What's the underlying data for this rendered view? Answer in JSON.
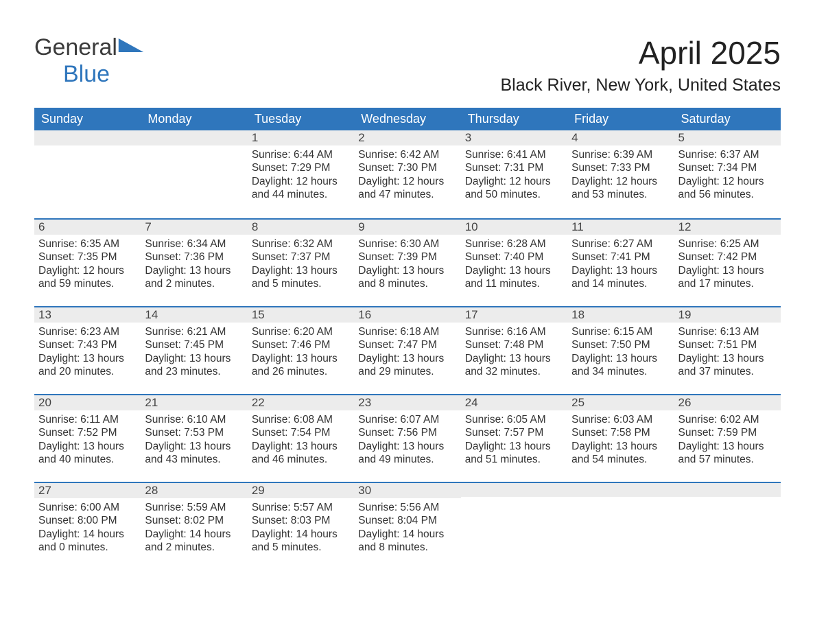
{
  "brand": {
    "part1": "General",
    "part2": "Blue",
    "brand_color": "#2f76bc"
  },
  "title": {
    "month": "April 2025",
    "location": "Black River, New York, United States"
  },
  "colors": {
    "header_bg": "#2f76bc",
    "header_text": "#ffffff",
    "daynum_bg": "#ececec",
    "week_divider": "#2f76bc",
    "page_bg": "#ffffff",
    "text": "#333333"
  },
  "labels": {
    "sunrise": "Sunrise:",
    "sunset": "Sunset:",
    "daylight": "Daylight:"
  },
  "calendar": {
    "type": "table",
    "columns": [
      "Sunday",
      "Monday",
      "Tuesday",
      "Wednesday",
      "Thursday",
      "Friday",
      "Saturday"
    ],
    "weeks": [
      [
        null,
        null,
        {
          "n": "1",
          "sunrise": "6:44 AM",
          "sunset": "7:29 PM",
          "daylight": "12 hours and 44 minutes."
        },
        {
          "n": "2",
          "sunrise": "6:42 AM",
          "sunset": "7:30 PM",
          "daylight": "12 hours and 47 minutes."
        },
        {
          "n": "3",
          "sunrise": "6:41 AM",
          "sunset": "7:31 PM",
          "daylight": "12 hours and 50 minutes."
        },
        {
          "n": "4",
          "sunrise": "6:39 AM",
          "sunset": "7:33 PM",
          "daylight": "12 hours and 53 minutes."
        },
        {
          "n": "5",
          "sunrise": "6:37 AM",
          "sunset": "7:34 PM",
          "daylight": "12 hours and 56 minutes."
        }
      ],
      [
        {
          "n": "6",
          "sunrise": "6:35 AM",
          "sunset": "7:35 PM",
          "daylight": "12 hours and 59 minutes."
        },
        {
          "n": "7",
          "sunrise": "6:34 AM",
          "sunset": "7:36 PM",
          "daylight": "13 hours and 2 minutes."
        },
        {
          "n": "8",
          "sunrise": "6:32 AM",
          "sunset": "7:37 PM",
          "daylight": "13 hours and 5 minutes."
        },
        {
          "n": "9",
          "sunrise": "6:30 AM",
          "sunset": "7:39 PM",
          "daylight": "13 hours and 8 minutes."
        },
        {
          "n": "10",
          "sunrise": "6:28 AM",
          "sunset": "7:40 PM",
          "daylight": "13 hours and 11 minutes."
        },
        {
          "n": "11",
          "sunrise": "6:27 AM",
          "sunset": "7:41 PM",
          "daylight": "13 hours and 14 minutes."
        },
        {
          "n": "12",
          "sunrise": "6:25 AM",
          "sunset": "7:42 PM",
          "daylight": "13 hours and 17 minutes."
        }
      ],
      [
        {
          "n": "13",
          "sunrise": "6:23 AM",
          "sunset": "7:43 PM",
          "daylight": "13 hours and 20 minutes."
        },
        {
          "n": "14",
          "sunrise": "6:21 AM",
          "sunset": "7:45 PM",
          "daylight": "13 hours and 23 minutes."
        },
        {
          "n": "15",
          "sunrise": "6:20 AM",
          "sunset": "7:46 PM",
          "daylight": "13 hours and 26 minutes."
        },
        {
          "n": "16",
          "sunrise": "6:18 AM",
          "sunset": "7:47 PM",
          "daylight": "13 hours and 29 minutes."
        },
        {
          "n": "17",
          "sunrise": "6:16 AM",
          "sunset": "7:48 PM",
          "daylight": "13 hours and 32 minutes."
        },
        {
          "n": "18",
          "sunrise": "6:15 AM",
          "sunset": "7:50 PM",
          "daylight": "13 hours and 34 minutes."
        },
        {
          "n": "19",
          "sunrise": "6:13 AM",
          "sunset": "7:51 PM",
          "daylight": "13 hours and 37 minutes."
        }
      ],
      [
        {
          "n": "20",
          "sunrise": "6:11 AM",
          "sunset": "7:52 PM",
          "daylight": "13 hours and 40 minutes."
        },
        {
          "n": "21",
          "sunrise": "6:10 AM",
          "sunset": "7:53 PM",
          "daylight": "13 hours and 43 minutes."
        },
        {
          "n": "22",
          "sunrise": "6:08 AM",
          "sunset": "7:54 PM",
          "daylight": "13 hours and 46 minutes."
        },
        {
          "n": "23",
          "sunrise": "6:07 AM",
          "sunset": "7:56 PM",
          "daylight": "13 hours and 49 minutes."
        },
        {
          "n": "24",
          "sunrise": "6:05 AM",
          "sunset": "7:57 PM",
          "daylight": "13 hours and 51 minutes."
        },
        {
          "n": "25",
          "sunrise": "6:03 AM",
          "sunset": "7:58 PM",
          "daylight": "13 hours and 54 minutes."
        },
        {
          "n": "26",
          "sunrise": "6:02 AM",
          "sunset": "7:59 PM",
          "daylight": "13 hours and 57 minutes."
        }
      ],
      [
        {
          "n": "27",
          "sunrise": "6:00 AM",
          "sunset": "8:00 PM",
          "daylight": "14 hours and 0 minutes."
        },
        {
          "n": "28",
          "sunrise": "5:59 AM",
          "sunset": "8:02 PM",
          "daylight": "14 hours and 2 minutes."
        },
        {
          "n": "29",
          "sunrise": "5:57 AM",
          "sunset": "8:03 PM",
          "daylight": "14 hours and 5 minutes."
        },
        {
          "n": "30",
          "sunrise": "5:56 AM",
          "sunset": "8:04 PM",
          "daylight": "14 hours and 8 minutes."
        },
        null,
        null,
        null
      ]
    ]
  }
}
